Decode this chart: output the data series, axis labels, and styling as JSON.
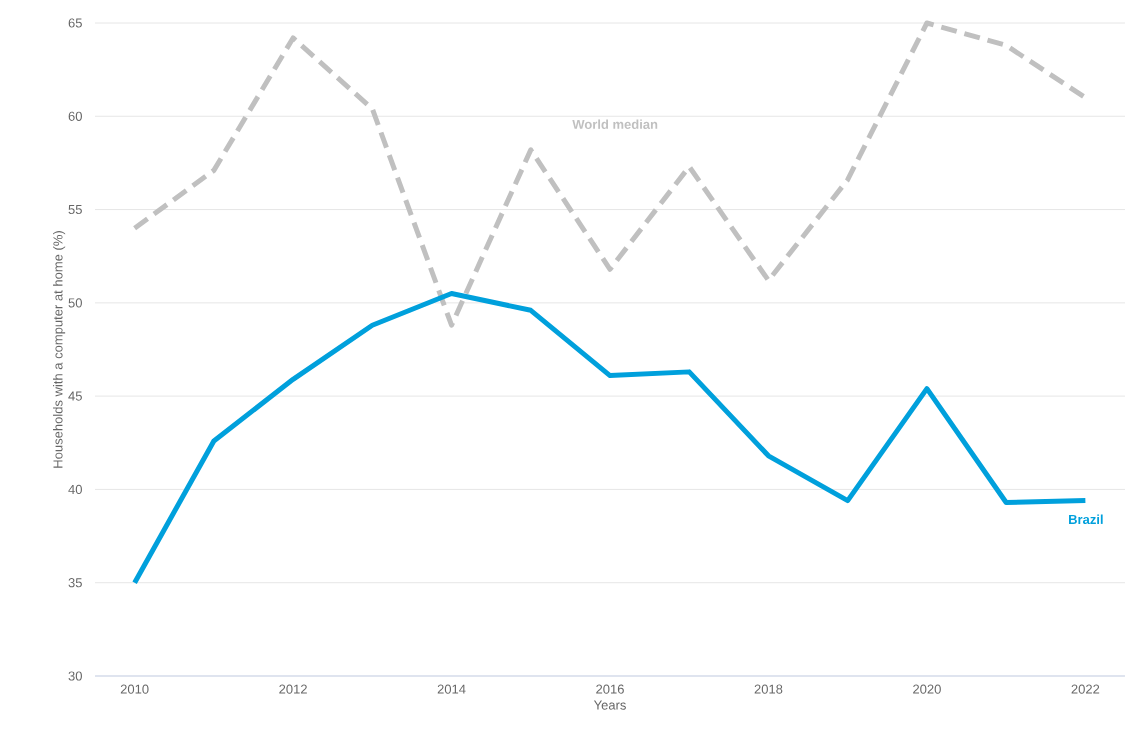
{
  "chart_data": {
    "type": "line",
    "xlabel": "Years",
    "ylabel": "Households with a computer at home (%)",
    "x": [
      2010,
      2011,
      2012,
      2013,
      2014,
      2015,
      2016,
      2017,
      2018,
      2019,
      2020,
      2021,
      2022
    ],
    "series": [
      {
        "name": "World median",
        "color": "#c0c0c0",
        "line_style": "dashed",
        "values": [
          54.0,
          57.1,
          64.2,
          60.4,
          48.8,
          58.2,
          51.8,
          57.3,
          51.2,
          56.6,
          65.0,
          63.8,
          61.0
        ]
      },
      {
        "name": "Brazil",
        "color": "#00a0dc",
        "line_style": "solid",
        "values": [
          35.0,
          42.6,
          45.9,
          48.8,
          50.5,
          49.6,
          46.1,
          46.3,
          41.8,
          39.4,
          45.4,
          39.3,
          39.4
        ]
      }
    ],
    "xlim": [
      2009.5,
      2022.5
    ],
    "ylim": [
      30,
      65
    ],
    "xticks": [
      2010,
      2012,
      2014,
      2016,
      2018,
      2020,
      2022
    ],
    "yticks": [
      30,
      35,
      40,
      45,
      50,
      55,
      60,
      65
    ],
    "grid": "y",
    "marker": "none"
  }
}
